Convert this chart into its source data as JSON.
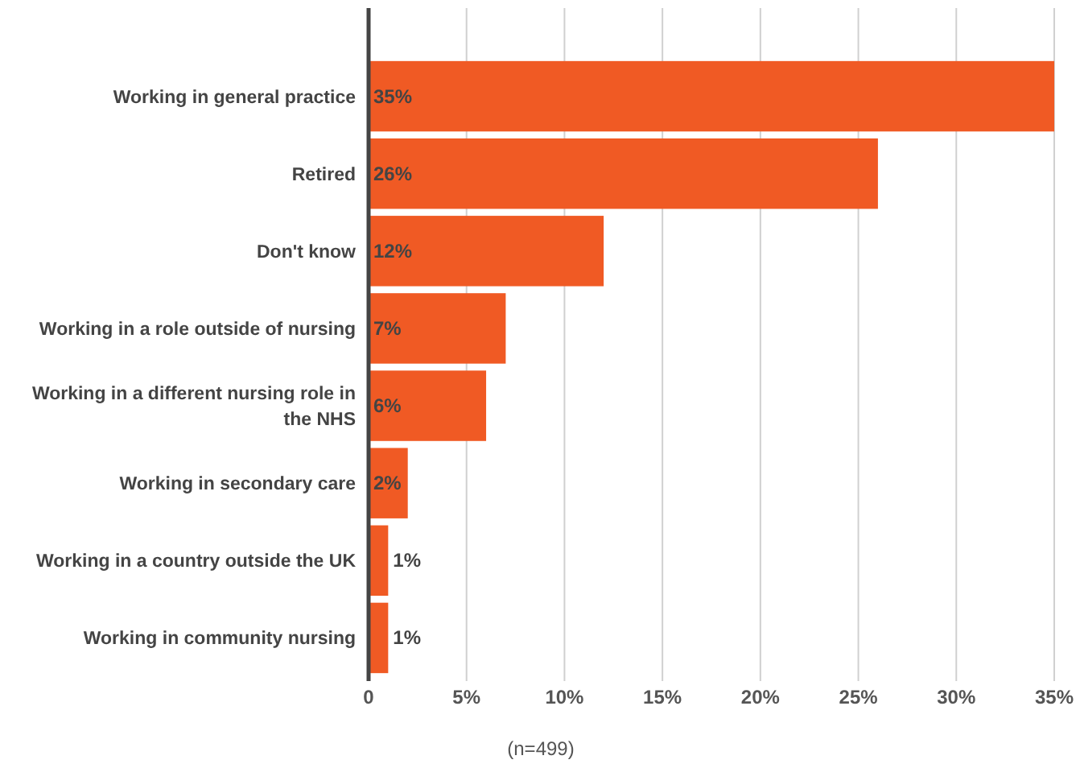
{
  "chart_data": {
    "type": "bar",
    "orientation": "horizontal",
    "categories": [
      "Working in general practice",
      "Retired",
      "Don't know",
      "Working in a role outside of nursing",
      "Working in a different nursing role in the NHS",
      "Working in secondary care",
      "Working in a country outside the UK",
      "Working in community nursing"
    ],
    "values": [
      35,
      26,
      12,
      7,
      6,
      2,
      1,
      1
    ],
    "value_labels": [
      "35%",
      "26%",
      "12%",
      "7%",
      "6%",
      "2%",
      "1%",
      "1%"
    ],
    "color": "#f05a24",
    "xlim": [
      0,
      35
    ],
    "xticks": [
      0,
      {
        "value": 5,
        "label": "5%"
      },
      {
        "value": 10,
        "label": "10%"
      },
      {
        "value": 15,
        "label": "15%"
      },
      {
        "value": 20,
        "label": "20%"
      },
      {
        "value": 25,
        "label": "25%"
      },
      {
        "value": 30,
        "label": "30%"
      },
      {
        "value": 35,
        "label": "35%"
      }
    ],
    "grid": "x",
    "annotations": [
      "(n=499)"
    ]
  }
}
